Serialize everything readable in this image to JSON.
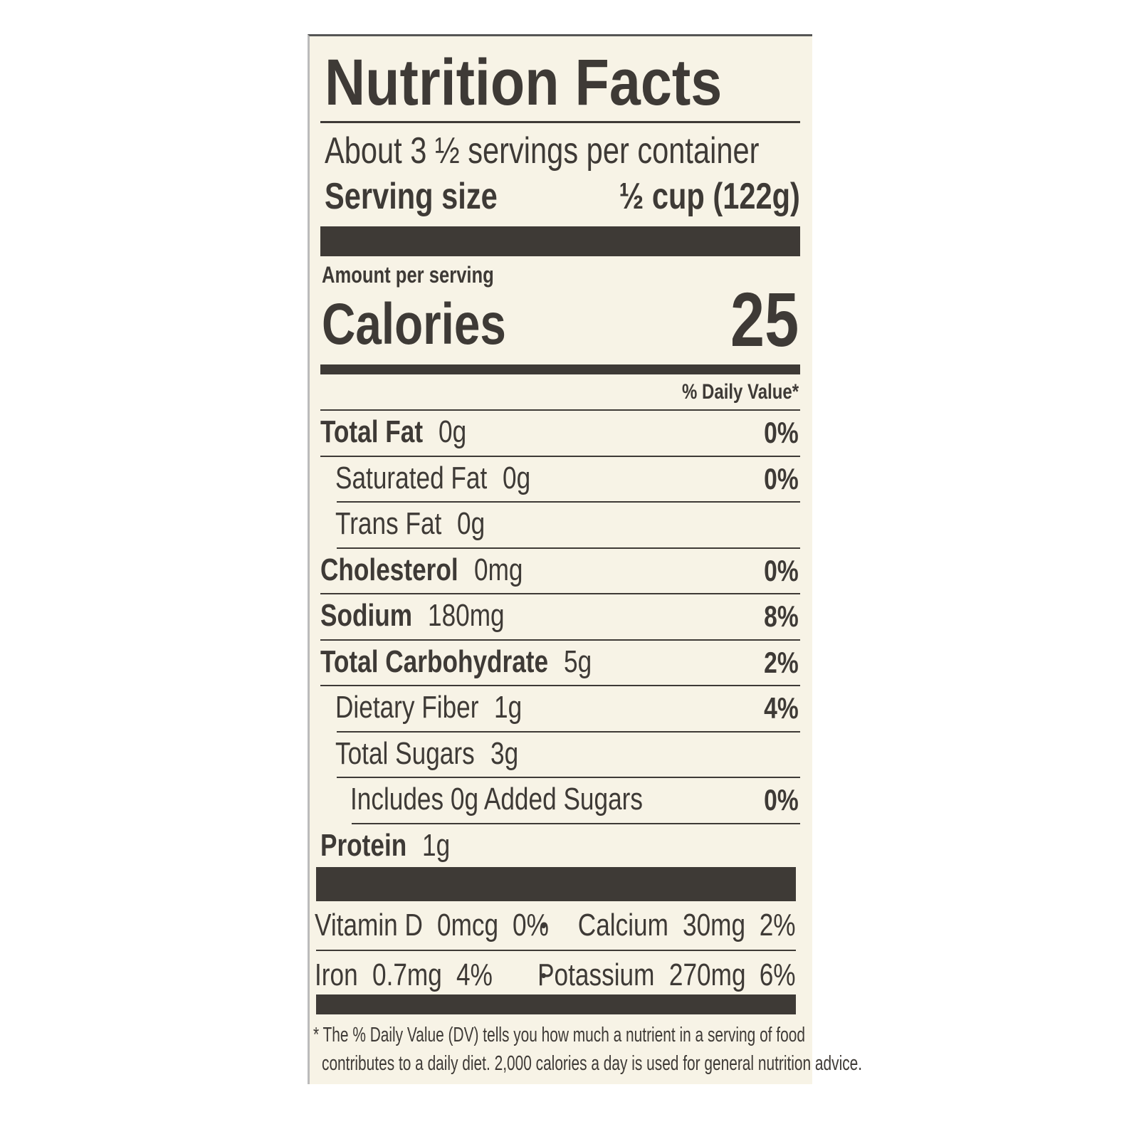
{
  "title": "Nutrition Facts",
  "servings": "About 3 ½ servings per container",
  "serving_size": {
    "label": "Serving size",
    "value": "½ cup (122g)"
  },
  "amount_per_serving": "Amount per serving",
  "calories": {
    "label": "Calories",
    "value": "25"
  },
  "dv_header": "% Daily Value*",
  "nutrients": [
    {
      "name": "Total Fat",
      "amount": "0g",
      "dv": "0%",
      "sub": [
        {
          "name": "Saturated Fat",
          "amount": "0g",
          "dv": "0%"
        },
        {
          "name": "Trans Fat",
          "amount": "0g"
        }
      ]
    },
    {
      "name": "Cholesterol",
      "amount": "0mg",
      "dv": "0%"
    },
    {
      "name": "Sodium",
      "amount": "180mg",
      "dv": "8%"
    },
    {
      "name": "Total Carbohydrate",
      "amount": "5g",
      "dv": "2%",
      "sub": [
        {
          "name": "Dietary Fiber",
          "amount": "1g",
          "dv": "4%"
        },
        {
          "name": "Total Sugars",
          "amount": "3g",
          "sub": [
            {
              "name": "Includes 0g Added Sugars",
              "dv": "0%"
            }
          ]
        }
      ]
    },
    {
      "name": "Protein",
      "amount": "1g"
    }
  ],
  "vitamins": [
    [
      {
        "name": "Vitamin D",
        "amount": "0mcg",
        "dv": "0%"
      },
      {
        "name": "Calcium",
        "amount": "30mg",
        "dv": "2%"
      }
    ],
    [
      {
        "name": "Iron",
        "amount": "0.7mg",
        "dv": "4%"
      },
      {
        "name": "Potassium",
        "amount": "270mg",
        "dv": "6%"
      }
    ]
  ],
  "footnote": [
    "* The % Daily Value (DV) tells you how much a nutrient in a serving of food",
    "contributes to a daily diet. 2,000 calories a day is used for general nutrition advice."
  ]
}
